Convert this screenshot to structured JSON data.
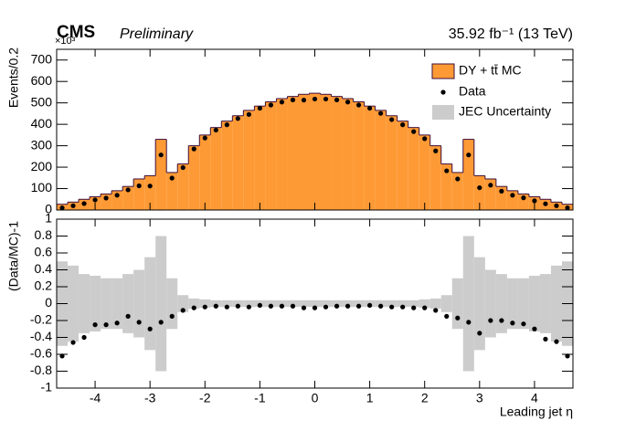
{
  "chart_data": [
    {
      "type": "histogram",
      "experiment": "CMS",
      "status": "Preliminary",
      "luminosity": "35.92 fb⁻¹ (13 TeV)",
      "multiplier": "×10³",
      "ylabel": "Events/0.2",
      "bins": [
        -4.7,
        -4.5,
        -4.3,
        -4.1,
        -3.9,
        -3.7,
        -3.5,
        -3.3,
        -3.1,
        -2.9,
        -2.7,
        -2.5,
        -2.3,
        -2.1,
        -1.9,
        -1.7,
        -1.5,
        -1.3,
        -1.1,
        -0.9,
        -0.7,
        -0.5,
        -0.3,
        -0.1,
        0.1,
        0.3,
        0.5,
        0.7,
        0.9,
        1.1,
        1.3,
        1.5,
        1.7,
        1.9,
        2.1,
        2.3,
        2.5,
        2.7,
        2.9,
        3.1,
        3.3,
        3.5,
        3.7,
        3.9,
        4.1,
        4.3,
        4.5,
        4.7
      ],
      "xlim": [
        -4.7,
        4.7
      ],
      "xticks": [
        -4,
        -3,
        -2,
        -1,
        0,
        1,
        2,
        3,
        4
      ],
      "ylim": [
        0,
        750
      ],
      "yticks": [
        0,
        100,
        200,
        300,
        400,
        500,
        600,
        700
      ],
      "legend": "top-right",
      "series": [
        {
          "name": "DY + tt̄  MC",
          "color": "#fe9a35",
          "edge_color": "#3d0f3d",
          "values": [
            27,
            37,
            50,
            62,
            75,
            90,
            110,
            145,
            160,
            330,
            175,
            215,
            300,
            350,
            385,
            415,
            440,
            465,
            485,
            505,
            520,
            530,
            540,
            545,
            540,
            530,
            520,
            505,
            485,
            465,
            440,
            415,
            385,
            350,
            300,
            215,
            175,
            330,
            160,
            145,
            110,
            90,
            75,
            62,
            50,
            37,
            27
          ]
        },
        {
          "name": "Data",
          "color": "#000000",
          "values": [
            10,
            20,
            30,
            47,
            56,
            69,
            94,
            113,
            112,
            257,
            149,
            198,
            285,
            336,
            373,
            398,
            427,
            446,
            475,
            490,
            504,
            514,
            513,
            518,
            518,
            514,
            504,
            490,
            475,
            451,
            422,
            398,
            366,
            333,
            276,
            183,
            145,
            257,
            104,
            116,
            88,
            69,
            57,
            43,
            29,
            20,
            10
          ]
        }
      ]
    },
    {
      "type": "ratio",
      "ylabel": "(Data/MC)-1",
      "xlabel": "Leading jet η",
      "xlim": [
        -4.7,
        4.7
      ],
      "xticks": [
        -4,
        -3,
        -2,
        -1,
        0,
        1,
        2,
        3,
        4
      ],
      "ylim": [
        -1,
        1
      ],
      "yticks": [
        -1,
        -0.8,
        -0.6,
        -0.4,
        -0.2,
        0,
        0.2,
        0.4,
        0.6,
        0.8,
        1
      ],
      "color": "#000000",
      "values": [
        -0.62,
        -0.46,
        -0.4,
        -0.25,
        -0.25,
        -0.23,
        -0.15,
        -0.22,
        -0.3,
        -0.22,
        -0.15,
        -0.08,
        -0.05,
        -0.04,
        -0.03,
        -0.04,
        -0.03,
        -0.04,
        -0.02,
        -0.03,
        -0.03,
        -0.03,
        -0.05,
        -0.05,
        -0.04,
        -0.03,
        -0.03,
        -0.03,
        -0.02,
        -0.03,
        -0.04,
        -0.04,
        -0.05,
        -0.05,
        -0.08,
        -0.15,
        -0.17,
        -0.22,
        -0.35,
        -0.2,
        -0.2,
        -0.23,
        -0.24,
        -0.3,
        -0.42,
        -0.45,
        -0.62
      ],
      "band": {
        "name": "JEC Uncertainty",
        "color": "#cccccc",
        "values": [
          0.5,
          0.45,
          0.35,
          0.33,
          0.3,
          0.3,
          0.35,
          0.4,
          0.55,
          0.8,
          0.3,
          0.1,
          0.06,
          0.05,
          0.04,
          0.04,
          0.04,
          0.04,
          0.04,
          0.04,
          0.04,
          0.04,
          0.04,
          0.04,
          0.04,
          0.04,
          0.04,
          0.04,
          0.04,
          0.04,
          0.04,
          0.04,
          0.04,
          0.05,
          0.06,
          0.1,
          0.3,
          0.8,
          0.55,
          0.4,
          0.35,
          0.3,
          0.3,
          0.33,
          0.35,
          0.45,
          0.5
        ]
      }
    }
  ]
}
